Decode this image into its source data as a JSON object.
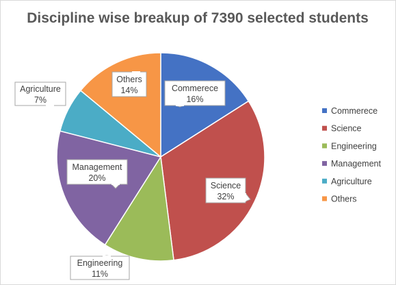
{
  "chart_data": {
    "type": "pie",
    "title": "Discipline wise breakup of 7390 selected students",
    "legend_position": "right",
    "start_angle_deg": 0,
    "direction": "clockwise",
    "slices": [
      {
        "label": "Commerece",
        "value": 16,
        "display": "16%",
        "color": "#4472C4"
      },
      {
        "label": "Science",
        "value": 32,
        "display": "32%",
        "color": "#C0504D"
      },
      {
        "label": "Engineering",
        "value": 11,
        "display": "11%",
        "color": "#9BBB59"
      },
      {
        "label": "Management",
        "value": 20,
        "display": "20%",
        "color": "#8064A2"
      },
      {
        "label": "Agriculture",
        "value": 7,
        "display": "7%",
        "color": "#4BACC6"
      },
      {
        "label": "Others",
        "value": 14,
        "display": "14%",
        "color": "#F79646"
      }
    ]
  }
}
